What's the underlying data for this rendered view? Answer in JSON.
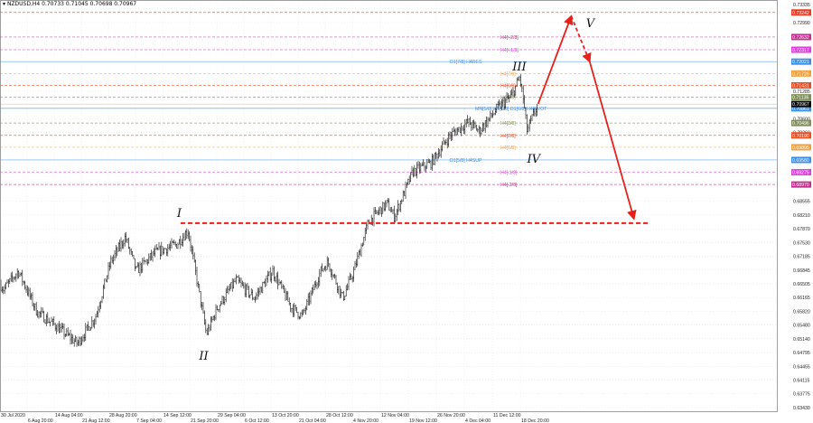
{
  "header": {
    "symbol": "NZDUSD,H4",
    "ohlc": "0.70733 0.71045 0.70698 0.70967"
  },
  "chart_data": {
    "type": "ohlc",
    "symbol": "NZDUSD",
    "timeframe": "H4",
    "ylim": [
      0.633,
      0.734
    ],
    "grid": true,
    "y_ticks": [
      "0.73335",
      "0.72990",
      "0.71285",
      "0.70600",
      "0.70260",
      "0.68555",
      "0.68210",
      "0.67870",
      "0.67530",
      "0.67185",
      "0.66845",
      "0.66505",
      "0.66165",
      "0.65820",
      "0.65480",
      "0.65140",
      "0.64795",
      "0.64455",
      "0.64115",
      "0.63775",
      "0.63430"
    ],
    "x_ticks": [
      "30 Jul 2020",
      "6 Aug 20:00",
      "14 Aug 04:00",
      "21 Aug 12:00",
      "28 Aug 20:00",
      "7 Sep 04:00",
      "14 Sep 12:00",
      "21 Sep 20:00",
      "29 Sep 04:00",
      "6 Oct 12:00",
      "13 Oct 20:00",
      "21 Oct 04:00",
      "28 Oct 12:00",
      "4 Nov 20:00",
      "12 Nov 04:00",
      "19 Nov 12:00",
      "26 Nov 20:00",
      "4 Dec 04:00",
      "11 Dec 12:00",
      "18 Dec 20:00"
    ],
    "price_path": [
      [
        "2020-07-30",
        0.665
      ],
      [
        "2020-07-31",
        0.6637
      ],
      [
        "2020-08-04",
        0.6682
      ],
      [
        "2020-08-09",
        0.6581
      ],
      [
        "2020-08-14",
        0.6547
      ],
      [
        "2020-08-20",
        0.6502
      ],
      [
        "2020-08-25",
        0.657
      ],
      [
        "2020-08-29",
        0.6704
      ],
      [
        "2020-09-02",
        0.6767
      ],
      [
        "2020-09-05",
        0.6682
      ],
      [
        "2020-09-10",
        0.6727
      ],
      [
        "2020-09-16",
        0.6749
      ],
      [
        "2020-09-19",
        0.6783
      ],
      [
        "2020-09-21",
        0.6682
      ],
      [
        "2020-09-24",
        0.6525
      ],
      [
        "2020-09-27",
        0.6592
      ],
      [
        "2020-10-02",
        0.6659
      ],
      [
        "2020-10-07",
        0.6615
      ],
      [
        "2020-10-12",
        0.6682
      ],
      [
        "2020-10-17",
        0.6592
      ],
      [
        "2020-10-20",
        0.657
      ],
      [
        "2020-10-25",
        0.6682
      ],
      [
        "2020-10-27",
        0.6704
      ],
      [
        "2020-10-31",
        0.6615
      ],
      [
        "2020-11-03",
        0.6682
      ],
      [
        "2020-11-07",
        0.6805
      ],
      [
        "2020-11-12",
        0.685
      ],
      [
        "2020-11-14",
        0.6817
      ],
      [
        "2020-11-19",
        0.6929
      ],
      [
        "2020-11-24",
        0.6951
      ],
      [
        "2020-11-29",
        0.7018
      ],
      [
        "2020-12-04",
        0.7052
      ],
      [
        "2020-12-07",
        0.703
      ],
      [
        "2020-12-12",
        0.7086
      ],
      [
        "2020-12-16",
        0.7119
      ],
      [
        "2020-12-18",
        0.7164
      ],
      [
        "2020-12-19",
        0.7108
      ],
      [
        "2020-12-20",
        0.703
      ],
      [
        "2020-12-22",
        0.7075
      ],
      [
        "2020-12-23",
        0.70967
      ]
    ],
    "levels": [
      {
        "price": "0.73242",
        "label": "",
        "color": "#f03a20",
        "tag": true
      },
      {
        "price": "0.72632",
        "label": "H4[+2/8]",
        "color": "#c0308f",
        "tag": true
      },
      {
        "price": "0.72317",
        "label": "H4[+1/8]",
        "color": "#e43ce4",
        "tag": true
      },
      {
        "price": "0.72021",
        "label": "D1[7/8] H4RES",
        "color": "#3a8fe8",
        "tag": true
      },
      {
        "price": "0.71726",
        "label": "H4[7/8]",
        "color": "#f0a040",
        "tag": true
      },
      {
        "price": "0.71431",
        "label": "H4[6/8]",
        "color": "#f04a20",
        "tag": true
      },
      {
        "price": "0.71136",
        "label": "H4[5/8]",
        "color": "#7f8f5a",
        "tag": true
      },
      {
        "price": "0.70861",
        "label": "MN[5/8] W1[5/8] D1[6/8] H4PIVOT",
        "color": "#3a8fe8",
        "tag": true
      },
      {
        "price": "0.70496",
        "label": "H4[3/8]",
        "color": "#7f8f5a",
        "tag": true
      },
      {
        "price": "0.70190",
        "label": "H4[2/8]",
        "color": "#f04a20",
        "tag": true
      },
      {
        "price": "0.69895",
        "label": "H4[1/8]",
        "color": "#f0a040",
        "tag": true
      },
      {
        "price": "0.69580",
        "label": "D1[5/8] H4SUP",
        "color": "#3a8fe8",
        "tag": true
      },
      {
        "price": "0.69275",
        "label": "H4[-1/8]",
        "color": "#e43ce4",
        "tag": true
      },
      {
        "price": "0.68970",
        "label": "H4[-2/8]",
        "color": "#c0308f",
        "tag": true
      }
    ],
    "current_price": {
      "price": "0.70967",
      "color": "#000000"
    },
    "support_line": {
      "price": 0.6801,
      "from": "2020-09-17",
      "to": "2021-01-22",
      "color": "#e8201a"
    },
    "projection": {
      "color": "#e8201a",
      "points": [
        [
          "2020-12-23",
          0.7097
        ],
        [
          "2021-01-01",
          0.7315
        ],
        [
          "2021-01-06",
          0.7202
        ],
        [
          "2021-01-18",
          0.6812
        ]
      ]
    },
    "wave_labels": [
      {
        "text": "I",
        "date": "2020-09-17",
        "price": 0.6828
      },
      {
        "text": "II",
        "date": "2020-09-23",
        "price": 0.6473
      },
      {
        "text": "III",
        "date": "2020-12-17",
        "price": 0.7191
      },
      {
        "text": "IV",
        "date": "2020-12-21",
        "price": 0.6962
      },
      {
        "text": "V",
        "date": "2021-01-06",
        "price": 0.7299
      }
    ]
  }
}
